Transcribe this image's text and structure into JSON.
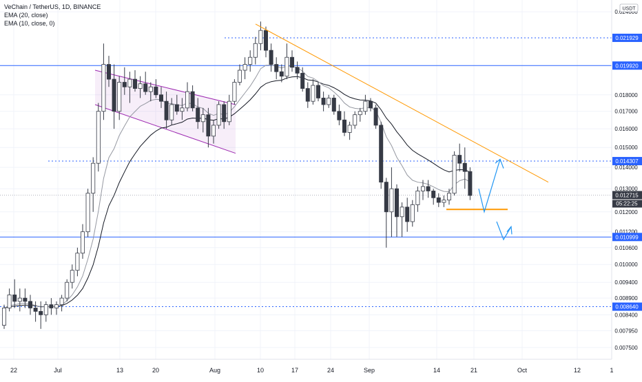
{
  "legend": {
    "symbol_line": "VeChain / TetherUS, 1D, BINANCE",
    "ema20_line": "EMA (20, close)",
    "ema10_line": "EMA (10, close, 0)"
  },
  "currency_badge": "USDT",
  "countdown": "05:22:25",
  "price_axis_ticks": [
    "0.024000",
    "0.018000",
    "0.017000",
    "0.016000",
    "0.015000",
    "0.014000",
    "0.013000",
    "0.012000",
    "0.011200",
    "0.010600",
    "0.010000",
    "0.009400",
    "0.008900",
    "0.008400",
    "0.007950",
    "0.007500"
  ],
  "time_axis_ticks": [
    "22",
    "Jul",
    "13",
    "20",
    "Aug",
    "10",
    "17",
    "24",
    "Sep",
    "14",
    "21",
    "Oct",
    "12",
    "1"
  ],
  "level_labels": {
    "l1": "0.021929",
    "l2": "0.019920",
    "l3": "0.014307",
    "l4": "0.012715",
    "l5": "0.010999",
    "l6": "0.008640"
  },
  "colors": {
    "up": "#ffffff",
    "down": "#363a45",
    "wick": "#363a45",
    "hline": "#2962ff",
    "trend": "#ff9800",
    "channel": "#9c27b0",
    "arrow": "#2196f3",
    "ema": "#131722"
  },
  "chart_data": {
    "type": "candlestick",
    "x_range": [
      "Jun 19",
      "Oct 19"
    ],
    "y_range": [
      0.0072,
      0.025
    ],
    "scale": "log",
    "candles": [
      [
        0.0081,
        0.0087,
        0.008,
        0.0086
      ],
      [
        0.0086,
        0.0092,
        0.0085,
        0.009
      ],
      [
        0.009,
        0.0095,
        0.0086,
        0.0088
      ],
      [
        0.0088,
        0.0092,
        0.0085,
        0.0089
      ],
      [
        0.0089,
        0.0092,
        0.0086,
        0.0088
      ],
      [
        0.0088,
        0.009,
        0.0084,
        0.0086
      ],
      [
        0.0086,
        0.0088,
        0.0082,
        0.0085
      ],
      [
        0.0085,
        0.0088,
        0.008,
        0.0084
      ],
      [
        0.0084,
        0.0088,
        0.0082,
        0.0087
      ],
      [
        0.0087,
        0.0089,
        0.0084,
        0.0086
      ],
      [
        0.0086,
        0.0088,
        0.0084,
        0.0087
      ],
      [
        0.0087,
        0.009,
        0.0085,
        0.0089
      ],
      [
        0.0089,
        0.0095,
        0.0088,
        0.0094
      ],
      [
        0.0094,
        0.01,
        0.0092,
        0.0098
      ],
      [
        0.0098,
        0.0106,
        0.0096,
        0.0104
      ],
      [
        0.0104,
        0.0115,
        0.0102,
        0.0112
      ],
      [
        0.0112,
        0.013,
        0.011,
        0.0128
      ],
      [
        0.0128,
        0.0145,
        0.012,
        0.0142
      ],
      [
        0.0142,
        0.0175,
        0.0138,
        0.017
      ],
      [
        0.017,
        0.0215,
        0.0165,
        0.02
      ],
      [
        0.02,
        0.0206,
        0.0185,
        0.019
      ],
      [
        0.019,
        0.02,
        0.016,
        0.017
      ],
      [
        0.017,
        0.0192,
        0.0165,
        0.0188
      ],
      [
        0.0188,
        0.0198,
        0.018,
        0.0185
      ],
      [
        0.0185,
        0.0195,
        0.0175,
        0.019
      ],
      [
        0.019,
        0.0196,
        0.0182,
        0.0184
      ],
      [
        0.0184,
        0.0192,
        0.0178,
        0.0187
      ],
      [
        0.0187,
        0.0195,
        0.018,
        0.0182
      ],
      [
        0.0182,
        0.0188,
        0.0176,
        0.0185
      ],
      [
        0.0185,
        0.019,
        0.0178,
        0.018
      ],
      [
        0.018,
        0.0185,
        0.0172,
        0.0176
      ],
      [
        0.0176,
        0.0182,
        0.016,
        0.0165
      ],
      [
        0.0165,
        0.0178,
        0.0162,
        0.0174
      ],
      [
        0.0174,
        0.018,
        0.0168,
        0.017
      ],
      [
        0.017,
        0.0178,
        0.0165,
        0.0172
      ],
      [
        0.0172,
        0.0188,
        0.017,
        0.0182
      ],
      [
        0.0182,
        0.0186,
        0.017,
        0.0172
      ],
      [
        0.0172,
        0.0178,
        0.016,
        0.0164
      ],
      [
        0.0164,
        0.0172,
        0.0158,
        0.0168
      ],
      [
        0.0168,
        0.0172,
        0.015,
        0.0156
      ],
      [
        0.0156,
        0.0165,
        0.0152,
        0.0162
      ],
      [
        0.0162,
        0.0176,
        0.016,
        0.0174
      ],
      [
        0.0174,
        0.0176,
        0.016,
        0.0164
      ],
      [
        0.0164,
        0.018,
        0.0162,
        0.0176
      ],
      [
        0.0176,
        0.019,
        0.0174,
        0.0188
      ],
      [
        0.0188,
        0.02,
        0.0186,
        0.0196
      ],
      [
        0.0196,
        0.0205,
        0.019,
        0.02
      ],
      [
        0.02,
        0.021,
        0.0195,
        0.0205
      ],
      [
        0.0205,
        0.022,
        0.02,
        0.0215
      ],
      [
        0.0215,
        0.0232,
        0.021,
        0.0225
      ],
      [
        0.0225,
        0.0228,
        0.0205,
        0.021
      ],
      [
        0.021,
        0.0215,
        0.0195,
        0.02
      ],
      [
        0.02,
        0.0205,
        0.019,
        0.0195
      ],
      [
        0.0195,
        0.02,
        0.0188,
        0.0192
      ],
      [
        0.0192,
        0.0215,
        0.019,
        0.0205
      ],
      [
        0.0205,
        0.021,
        0.0195,
        0.0198
      ],
      [
        0.0198,
        0.0202,
        0.019,
        0.0194
      ],
      [
        0.0194,
        0.0198,
        0.0182,
        0.0184
      ],
      [
        0.0184,
        0.0188,
        0.0172,
        0.0176
      ],
      [
        0.0176,
        0.019,
        0.0174,
        0.0186
      ],
      [
        0.0186,
        0.0188,
        0.0176,
        0.0178
      ],
      [
        0.0178,
        0.0182,
        0.017,
        0.0174
      ],
      [
        0.0174,
        0.018,
        0.0172,
        0.0178
      ],
      [
        0.0178,
        0.018,
        0.0168,
        0.017
      ],
      [
        0.017,
        0.0174,
        0.0162,
        0.0165
      ],
      [
        0.0165,
        0.017,
        0.0156,
        0.0158
      ],
      [
        0.0158,
        0.0164,
        0.0154,
        0.0162
      ],
      [
        0.0162,
        0.017,
        0.016,
        0.0168
      ],
      [
        0.0168,
        0.0172,
        0.0164,
        0.017
      ],
      [
        0.017,
        0.018,
        0.0168,
        0.0176
      ],
      [
        0.0176,
        0.0178,
        0.017,
        0.0172
      ],
      [
        0.0172,
        0.0174,
        0.016,
        0.0162
      ],
      [
        0.0162,
        0.0164,
        0.013,
        0.0133
      ],
      [
        0.0133,
        0.0135,
        0.0106,
        0.012
      ],
      [
        0.012,
        0.014,
        0.011,
        0.013
      ],
      [
        0.013,
        0.0132,
        0.011,
        0.0118
      ],
      [
        0.0118,
        0.0124,
        0.011,
        0.0122
      ],
      [
        0.0122,
        0.0126,
        0.0112,
        0.0116
      ],
      [
        0.0116,
        0.0125,
        0.0114,
        0.0123
      ],
      [
        0.0123,
        0.0131,
        0.012,
        0.0129
      ],
      [
        0.0129,
        0.0134,
        0.0125,
        0.0131
      ],
      [
        0.0131,
        0.0134,
        0.0126,
        0.0129
      ],
      [
        0.0129,
        0.013,
        0.0123,
        0.0126
      ],
      [
        0.0126,
        0.0128,
        0.0122,
        0.0124
      ],
      [
        0.0124,
        0.0127,
        0.0122,
        0.0125
      ],
      [
        0.0125,
        0.013,
        0.0123,
        0.0128
      ],
      [
        0.0128,
        0.0148,
        0.0127,
        0.0146
      ],
      [
        0.0146,
        0.0152,
        0.0138,
        0.0142
      ],
      [
        0.0142,
        0.015,
        0.013,
        0.0138
      ],
      [
        0.0138,
        0.014,
        0.0125,
        0.0127
      ]
    ],
    "ema20_note": "EMA (20, close)",
    "ema10_note": "EMA (10, close, 0)",
    "horizontal_levels": [
      0.021929,
      0.01992,
      0.014307,
      0.012715,
      0.010999,
      0.00864
    ],
    "support_level": 0.0121,
    "resistance_trendline": [
      [
        0.023,
        "Aug 9"
      ],
      [
        0.0133,
        "Oct 5"
      ]
    ],
    "channel": {
      "upper": [
        [
          0.0196,
          "Jul 8"
        ],
        [
          0.0173,
          "Aug 3"
        ]
      ],
      "lower": [
        [
          0.0174,
          "Jul 8"
        ],
        [
          0.0147,
          "Aug 3"
        ]
      ]
    },
    "scenario_arrows": [
      {
        "direction": "up",
        "from": 0.013,
        "to": 0.0144
      },
      {
        "direction": "down",
        "from": 0.0115,
        "to": 0.0109
      }
    ]
  }
}
